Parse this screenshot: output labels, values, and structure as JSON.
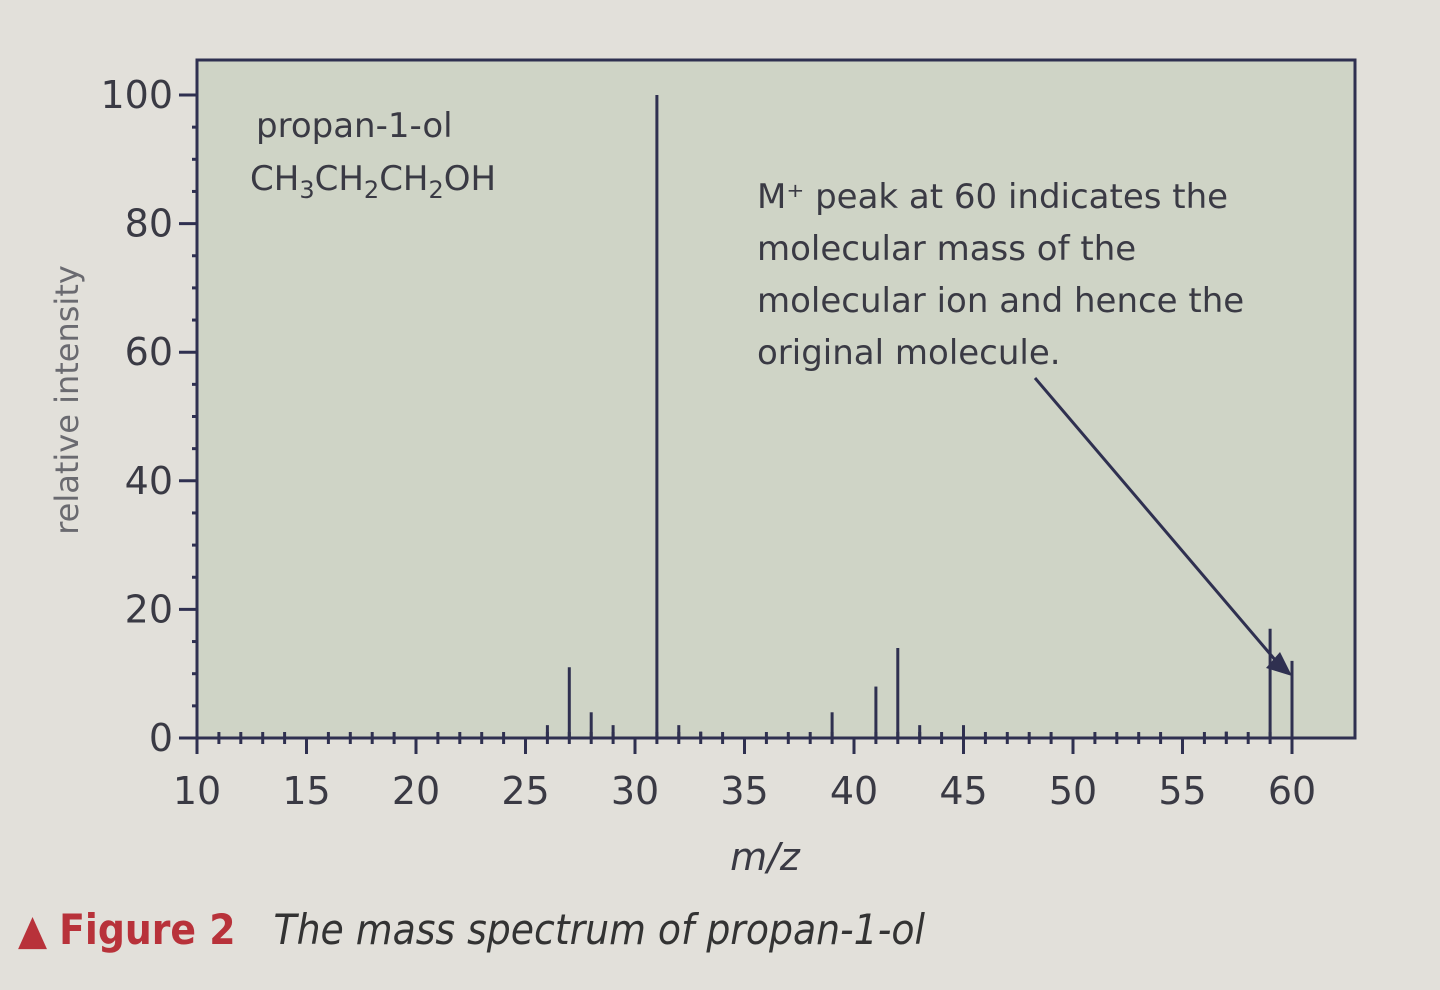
{
  "chart_data": {
    "type": "bar",
    "title": "propan-1-ol",
    "formula": "CH3CH2CH2OH",
    "xlabel": "m/z",
    "ylabel": "relative intensity",
    "xlim": [
      10,
      60
    ],
    "ylim": [
      0,
      100
    ],
    "xticks": [
      10,
      15,
      20,
      25,
      30,
      35,
      40,
      45,
      50,
      55,
      60
    ],
    "yticks": [
      0,
      20,
      40,
      60,
      80,
      100
    ],
    "grid": false,
    "x": [
      26,
      27,
      28,
      29,
      31,
      32,
      33,
      39,
      41,
      42,
      43,
      45,
      57,
      59,
      60
    ],
    "values": [
      2,
      11,
      4,
      2,
      100,
      2,
      1,
      4,
      8,
      14,
      2,
      2,
      1,
      17,
      12
    ],
    "annotation": {
      "lines": [
        "M⁺ peak at 60 indicates the",
        "molecular mass of the",
        "molecular ion and hence the",
        "original molecule."
      ],
      "points_to_x": 60
    },
    "colors": {
      "plot_bg": "#cfd4c6",
      "ink": "#2f3050",
      "caption": "#b8323a"
    }
  },
  "caption": {
    "figure": "Figure 2",
    "text": "The mass spectrum of propan-1-ol",
    "marker_icon": "triangle-up-icon"
  }
}
